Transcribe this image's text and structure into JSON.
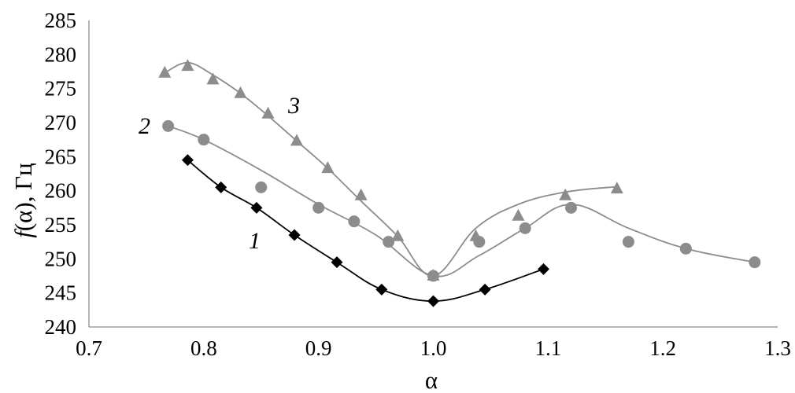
{
  "chart_data": {
    "type": "scatter",
    "xlabel": "α",
    "ylabel_prefix": "f",
    "ylabel_suffix": "(α), Гц",
    "xlim": [
      0.7,
      1.3
    ],
    "ylim": [
      240,
      285
    ],
    "x_ticks": [
      0.7,
      0.8,
      0.9,
      1.0,
      1.1,
      1.2,
      1.3
    ],
    "x_tick_labels": [
      "0.7",
      "0.8",
      "0.9",
      "1.0",
      "1.1",
      "1.2",
      "1.3"
    ],
    "y_ticks": [
      240,
      245,
      250,
      255,
      260,
      265,
      270,
      275,
      280,
      285
    ],
    "y_tick_labels": [
      "240",
      "245",
      "250",
      "255",
      "260",
      "265",
      "270",
      "275",
      "280",
      "285"
    ],
    "grid": false,
    "legend": "none",
    "series": [
      {
        "label": "1",
        "marker": "diamond",
        "color": "#000000",
        "line_color": "#000000",
        "x": [
          0.786,
          0.815,
          0.846,
          0.879,
          0.916,
          0.955,
          1.0,
          1.045,
          1.096
        ],
        "y": [
          264.5,
          260.5,
          257.5,
          253.5,
          249.5,
          245.5,
          243.8,
          245.5,
          248.5
        ]
      },
      {
        "label": "2",
        "marker": "circle",
        "color": "#8c8c8c",
        "line_color": "#8c8c8c",
        "x": [
          0.769,
          0.8,
          0.85,
          0.9,
          0.931,
          0.961,
          1.0,
          1.04,
          1.08,
          1.12,
          1.17,
          1.22,
          1.28
        ],
        "y": [
          269.5,
          267.5,
          260.5,
          257.5,
          255.5,
          252.5,
          247.5,
          252.5,
          254.5,
          257.5,
          252.5,
          251.5,
          249.5
        ],
        "curve_x": [
          0.769,
          0.8,
          0.85,
          0.9,
          0.95,
          1.0,
          1.04,
          1.08,
          1.12,
          1.17,
          1.22,
          1.28
        ],
        "curve_y": [
          269.5,
          267.5,
          263.0,
          258.0,
          253.5,
          247.5,
          250.5,
          254.5,
          258.0,
          254.5,
          251.5,
          249.5
        ]
      },
      {
        "label": "3",
        "marker": "triangle",
        "color": "#8c8c8c",
        "line_color": "#8c8c8c",
        "x": [
          0.766,
          0.786,
          0.808,
          0.832,
          0.856,
          0.881,
          0.908,
          0.937,
          0.969,
          1.0,
          1.037,
          1.074,
          1.115,
          1.16
        ],
        "y": [
          277.3,
          278.3,
          276.3,
          274.3,
          271.3,
          267.3,
          263.3,
          259.3,
          253.3,
          247.5,
          253.3,
          256.3,
          259.3,
          260.3
        ],
        "curve_x": [
          0.766,
          0.786,
          0.808,
          0.832,
          0.856,
          0.881,
          0.908,
          0.937,
          0.969,
          1.0,
          1.037,
          1.074,
          1.115,
          1.16
        ],
        "curve_y": [
          277.3,
          278.8,
          277.0,
          274.3,
          271.0,
          267.3,
          263.3,
          258.5,
          253.3,
          247.5,
          254.5,
          258.0,
          259.8,
          260.6
        ]
      }
    ],
    "curve_labels": [
      "1",
      "2",
      "3"
    ]
  }
}
